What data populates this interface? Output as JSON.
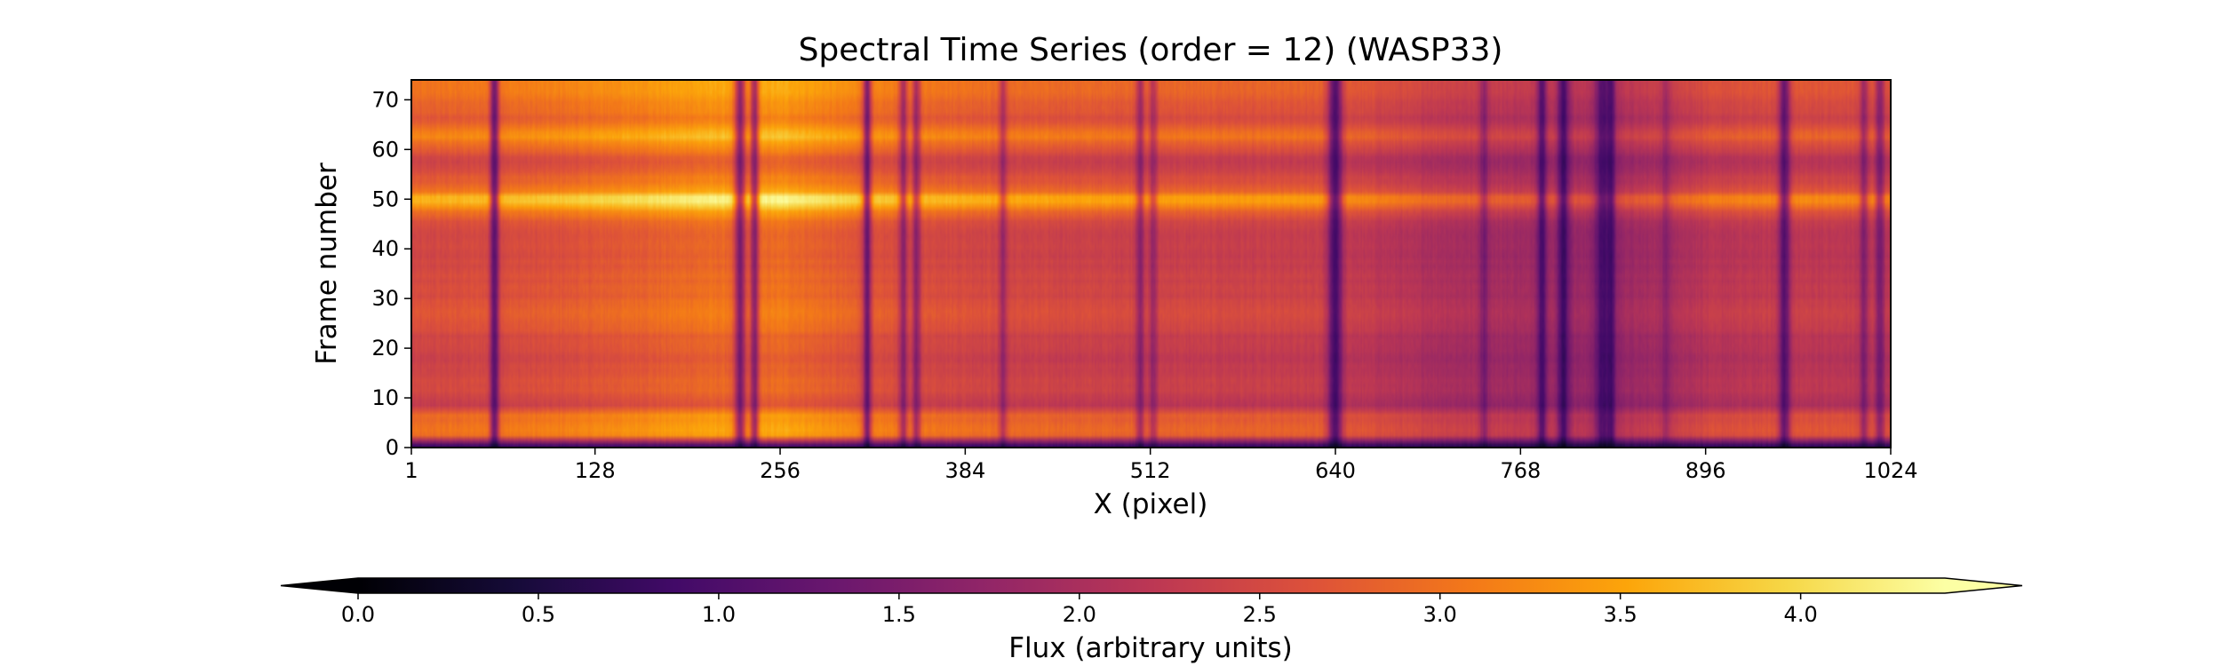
{
  "chart_data": {
    "type": "heatmap",
    "title": "Spectral Time Series (order = 12) (WASP33)",
    "xlabel": "X (pixel)",
    "ylabel": "Frame number",
    "xlim": [
      1,
      1024
    ],
    "ylim": [
      0,
      74
    ],
    "xticks": [
      1,
      128,
      256,
      384,
      512,
      640,
      768,
      896,
      1024
    ],
    "yticks": [
      0,
      10,
      20,
      30,
      40,
      50,
      60,
      70
    ],
    "colorbar": {
      "label": "Flux (arbitrary units)",
      "colormap": "inferno",
      "range": [
        0.0,
        4.4
      ],
      "extend": "both",
      "ticks": [
        "0.0",
        "0.5",
        "1.0",
        "1.5",
        "2.0",
        "2.5",
        "3.0",
        "3.5",
        "4.0"
      ],
      "orientation": "horizontal"
    },
    "continuum_profile": [
      {
        "x": 1,
        "flux": 2.6
      },
      {
        "x": 100,
        "flux": 2.75
      },
      {
        "x": 200,
        "flux": 3.05
      },
      {
        "x": 260,
        "flux": 3.1
      },
      {
        "x": 320,
        "flux": 2.75
      },
      {
        "x": 420,
        "flux": 2.55
      },
      {
        "x": 520,
        "flux": 2.5
      },
      {
        "x": 630,
        "flux": 2.45
      },
      {
        "x": 700,
        "flux": 2.15
      },
      {
        "x": 760,
        "flux": 2.0
      },
      {
        "x": 830,
        "flux": 1.85
      },
      {
        "x": 900,
        "flux": 2.25
      },
      {
        "x": 960,
        "flux": 2.35
      },
      {
        "x": 1024,
        "flux": 2.3
      }
    ],
    "frame_brightness": [
      {
        "frame": 0,
        "factor": 0.35
      },
      {
        "frame": 1,
        "factor": 0.35
      },
      {
        "frame": 2,
        "factor": 1.15
      },
      {
        "frame": 7,
        "factor": 1.1
      },
      {
        "frame": 8,
        "factor": 0.88
      },
      {
        "frame": 12,
        "factor": 0.95
      },
      {
        "frame": 18,
        "factor": 0.9
      },
      {
        "frame": 22,
        "factor": 0.92
      },
      {
        "frame": 27,
        "factor": 1.05
      },
      {
        "frame": 31,
        "factor": 0.97
      },
      {
        "frame": 37,
        "factor": 0.95
      },
      {
        "frame": 40,
        "factor": 0.92
      },
      {
        "frame": 45,
        "factor": 0.98
      },
      {
        "frame": 47,
        "factor": 1.1
      },
      {
        "frame": 50,
        "factor": 1.45
      },
      {
        "frame": 52,
        "factor": 1.1
      },
      {
        "frame": 55,
        "factor": 1.0
      },
      {
        "frame": 58,
        "factor": 0.92
      },
      {
        "frame": 61,
        "factor": 1.1
      },
      {
        "frame": 63,
        "factor": 1.25
      },
      {
        "frame": 66,
        "factor": 1.0
      },
      {
        "frame": 70,
        "factor": 1.12
      },
      {
        "frame": 74,
        "factor": 1.15
      }
    ],
    "absorption_lines": [
      {
        "x": 58,
        "depth": 0.55,
        "width": 3
      },
      {
        "x": 228,
        "depth": 0.5,
        "width": 4
      },
      {
        "x": 238,
        "depth": 0.45,
        "width": 3
      },
      {
        "x": 316,
        "depth": 0.5,
        "width": 3
      },
      {
        "x": 341,
        "depth": 0.35,
        "width": 3
      },
      {
        "x": 350,
        "depth": 0.35,
        "width": 3
      },
      {
        "x": 410,
        "depth": 0.25,
        "width": 3
      },
      {
        "x": 505,
        "depth": 0.3,
        "width": 3
      },
      {
        "x": 514,
        "depth": 0.25,
        "width": 3
      },
      {
        "x": 640,
        "depth": 0.6,
        "width": 5
      },
      {
        "x": 743,
        "depth": 0.25,
        "width": 3
      },
      {
        "x": 783,
        "depth": 0.5,
        "width": 3
      },
      {
        "x": 798,
        "depth": 0.55,
        "width": 4
      },
      {
        "x": 825,
        "depth": 0.5,
        "width": 5
      },
      {
        "x": 831,
        "depth": 0.45,
        "width": 3
      },
      {
        "x": 869,
        "depth": 0.2,
        "width": 3
      },
      {
        "x": 951,
        "depth": 0.5,
        "width": 4
      },
      {
        "x": 1006,
        "depth": 0.3,
        "width": 3
      },
      {
        "x": 1017,
        "depth": 0.35,
        "width": 3
      }
    ]
  }
}
